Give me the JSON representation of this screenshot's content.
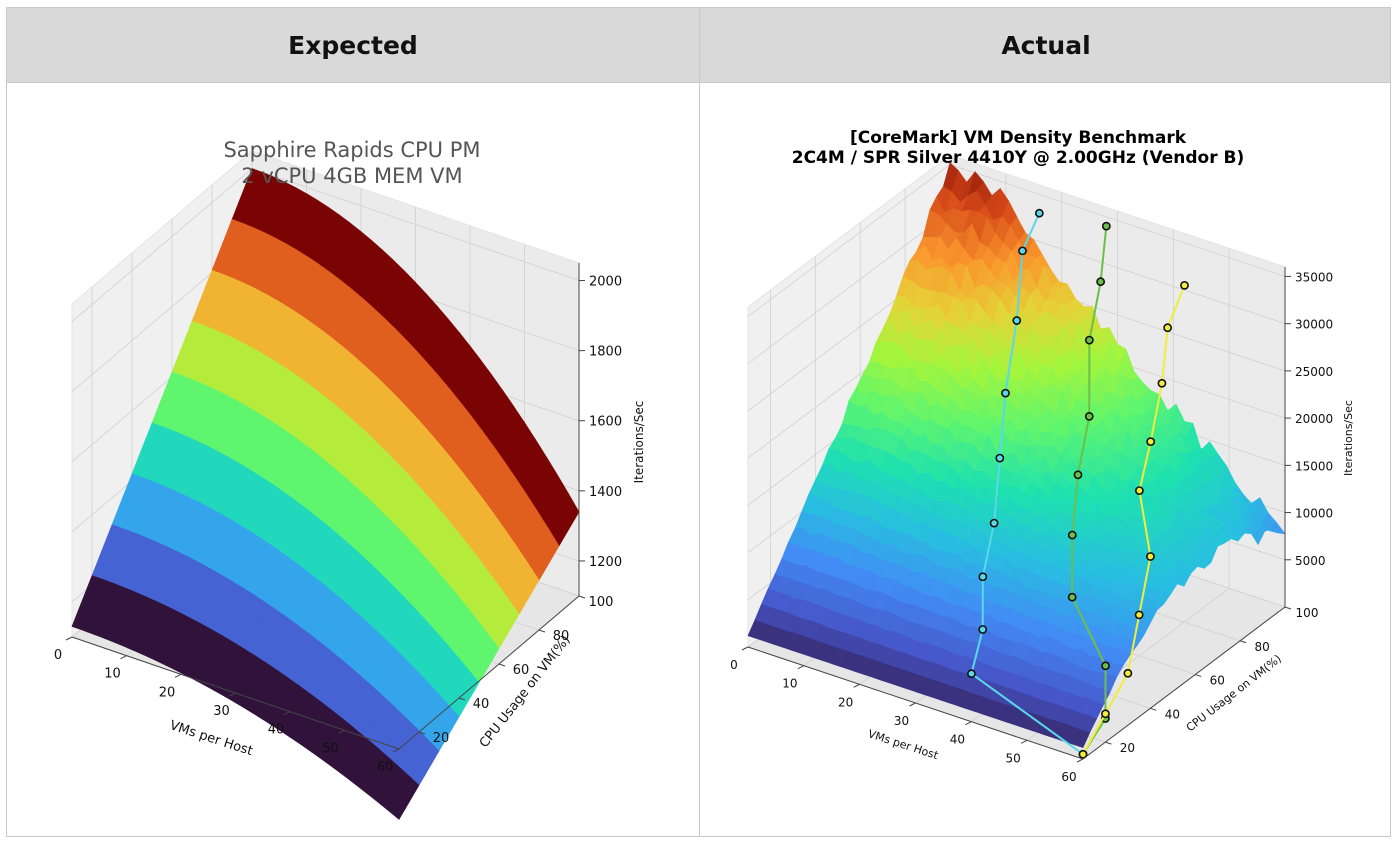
{
  "header": {
    "left_label": "Expected",
    "right_label": "Actual"
  },
  "chart_data": [
    {
      "type": "surface3d",
      "title": "Sapphire Rapids CPU PM\n2 vCPU 4GB MEM VM",
      "title_lines": [
        "Sapphire Rapids CPU PM",
        "2 vCPU 4GB MEM VM"
      ],
      "xlabel": "VMs per Host",
      "ylabel": "CPU Usage on VM(%)",
      "zlabel": "Iterations/Sec",
      "x_ticks": [
        "0",
        "10",
        "20",
        "30",
        "40",
        "50",
        "60"
      ],
      "y_ticks": [
        "20",
        "40",
        "60",
        "80",
        "100"
      ],
      "z_ticks": [
        "1200",
        "1400",
        "1600",
        "1800",
        "2000"
      ],
      "xlim": [
        0,
        60
      ],
      "ylim": [
        10,
        100
      ],
      "zlim": [
        1100,
        2050
      ],
      "colormap": "turbo"
    },
    {
      "type": "surface3d",
      "title": "[CoreMark] VM Density Benchmark\n2C4M / SPR Silver 4410Y @ 2.00GHz (Vendor B)",
      "title_lines": [
        "[CoreMark] VM Density Benchmark",
        "2C4M / SPR Silver 4410Y @ 2.00GHz (Vendor B)"
      ],
      "xlabel": "VMs per Host",
      "ylabel": "CPU Usage on VM(%)",
      "zlabel": "Iterations/Sec",
      "x_ticks": [
        "0",
        "10",
        "20",
        "30",
        "40",
        "50",
        "60"
      ],
      "y_ticks": [
        "20",
        "40",
        "60",
        "80",
        "100"
      ],
      "z_ticks": [
        "5000",
        "10000",
        "15000",
        "20000",
        "25000",
        "30000",
        "35000"
      ],
      "xlim": [
        0,
        60
      ],
      "ylim": [
        10,
        100
      ],
      "zlim": [
        0,
        36000
      ],
      "colormap": "turbo",
      "series": [
        {
          "color": "#5ad7e8"
        },
        {
          "color": "#6cbf4a"
        },
        {
          "color": "#f2ec3a"
        }
      ]
    }
  ]
}
